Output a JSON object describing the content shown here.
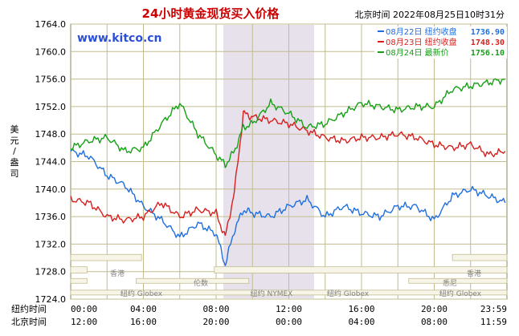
{
  "title": "24小时黄金现货买入价格",
  "header_time": "北京时间  2022年08月25日10时31分",
  "watermark": "www.kitco.cn",
  "ylabel_chars": [
    "美",
    "元",
    "/",
    "盎",
    "司"
  ],
  "legend": [
    {
      "label": "08月22日  纽约收盘",
      "value": "1736.90",
      "color": "#1f6fe0"
    },
    {
      "label": "08月23日  纽约收盘",
      "value": "1748.30",
      "color": "#d81f1f"
    },
    {
      "label": "08月24日  最新价",
      "value": "1756.10",
      "color": "#16a016"
    }
  ],
  "session_labels": {
    "hongkong_left": "香港",
    "hongkong_right": "香港",
    "london": "伦数",
    "sydney": "悉尼",
    "globex_1": "纽约 Globex",
    "globex_2": "纽约 Globex",
    "globex_3": "纽约 Globex",
    "nymex": "纽约 NYMEX"
  },
  "xaxis": {
    "row1_label": "纽约时间",
    "row2_label": "北京时间",
    "row1_ticks": [
      "00:00",
      "04:00",
      "08:00",
      "12:00",
      "16:00",
      "20:00",
      "23:59"
    ],
    "row2_ticks": [
      "12:00",
      "16:00",
      "20:00",
      "00:00",
      "04:00",
      "08:00",
      "11:59"
    ]
  },
  "chart_data": {
    "type": "line",
    "title": "24小时黄金现货买入价格",
    "ylabel": "美元/盎司",
    "xlabel": "纽约时间",
    "ylim": [
      1724.0,
      1764.0
    ],
    "yticks": [
      "1764.0",
      "1760.0",
      "1756.0",
      "1752.0",
      "1748.0",
      "1744.0",
      "1740.0",
      "1736.0",
      "1732.0",
      "1728.0",
      "1724.0"
    ],
    "x_hours": [
      0,
      1,
      2,
      3,
      4,
      5,
      6,
      7,
      8,
      8.5,
      9,
      9.5,
      10,
      11,
      12,
      13,
      14,
      15,
      16,
      17,
      18,
      19,
      20,
      21,
      22,
      23,
      23.9
    ],
    "series": [
      {
        "name": "08月22日",
        "color": "#1f6fe0",
        "values": [
          1745.5,
          1744.8,
          1742.0,
          1740.5,
          1737.5,
          1735.5,
          1733.0,
          1735.0,
          1733.5,
          1729.0,
          1734.0,
          1737.0,
          1736.5,
          1736.0,
          1737.5,
          1738.5,
          1736.0,
          1737.5,
          1736.5,
          1736.0,
          1737.5,
          1737.5,
          1735.5,
          1739.0,
          1740.0,
          1739.0,
          1738.0
        ]
      },
      {
        "name": "08月23日",
        "color": "#d81f1f",
        "values": [
          1738.5,
          1738.0,
          1736.0,
          1735.5,
          1736.0,
          1738.0,
          1736.0,
          1737.0,
          1736.5,
          1733.0,
          1739.5,
          1751.0,
          1750.5,
          1750.0,
          1749.5,
          1748.5,
          1747.5,
          1747.0,
          1747.5,
          1747.5,
          1748.0,
          1747.5,
          1746.5,
          1746.0,
          1746.5,
          1745.0,
          1745.5
        ]
      },
      {
        "name": "08月24日",
        "color": "#16a016",
        "values": [
          1746.0,
          1747.0,
          1747.5,
          1745.5,
          1746.0,
          1749.5,
          1752.5,
          1748.0,
          1745.0,
          1743.5,
          1745.5,
          1749.0,
          1749.5,
          1752.5,
          1751.0,
          1749.0,
          1749.5,
          1751.0,
          1752.5,
          1752.0,
          1751.5,
          1752.0,
          1752.0,
          1754.5,
          1755.0,
          1755.5,
          1756.0
        ]
      }
    ]
  }
}
